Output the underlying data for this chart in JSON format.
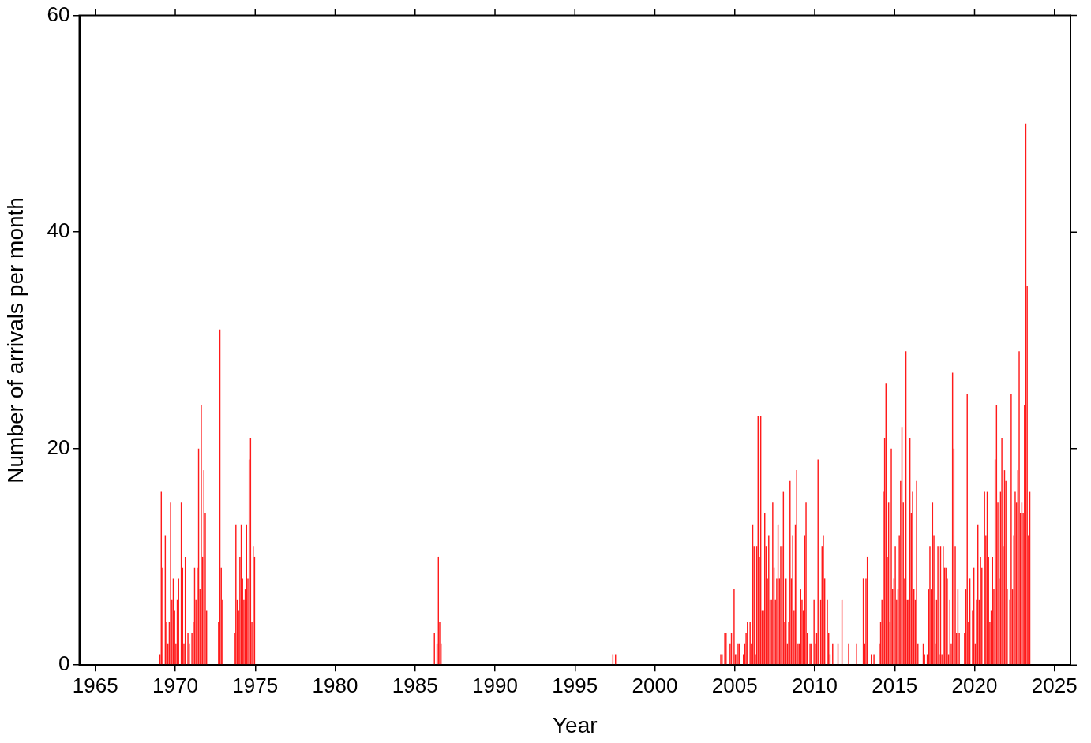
{
  "chart_data": {
    "type": "bar",
    "xlabel": "Year",
    "ylabel": "Number of arrivals per month",
    "color": "#ff1a1a",
    "x": [
      "1969-01",
      "1969-02",
      "1969-03",
      "1969-05",
      "1969-06",
      "1969-07",
      "1969-08",
      "1969-09",
      "1969-10",
      "1969-11",
      "1969-12",
      "1970-01",
      "1970-02",
      "1970-03",
      "1970-05",
      "1970-06",
      "1970-07",
      "1970-08",
      "1970-10",
      "1970-11",
      "1971-01",
      "1971-02",
      "1971-03",
      "1971-04",
      "1971-05",
      "1971-06",
      "1971-07",
      "1971-08",
      "1971-09",
      "1971-10",
      "1971-11",
      "1971-12",
      "1972-09",
      "1972-10",
      "1972-11",
      "1972-12",
      "1973-09",
      "1973-10",
      "1973-11",
      "1973-12",
      "1974-01",
      "1974-02",
      "1974-03",
      "1974-04",
      "1974-05",
      "1974-06",
      "1974-07",
      "1974-08",
      "1974-09",
      "1974-10",
      "1974-11",
      "1974-12",
      "1986-03",
      "1986-05",
      "1986-06",
      "1986-07",
      "1986-08",
      "1997-05",
      "1997-07",
      "2004-02",
      "2004-03",
      "2004-05",
      "2004-06",
      "2004-09",
      "2004-10",
      "2004-12",
      "2005-01",
      "2005-02",
      "2005-03",
      "2005-04",
      "2005-07",
      "2005-08",
      "2005-09",
      "2005-10",
      "2005-12",
      "2006-01",
      "2006-02",
      "2006-03",
      "2006-04",
      "2006-05",
      "2006-06",
      "2006-07",
      "2006-08",
      "2006-09",
      "2006-10",
      "2006-11",
      "2006-12",
      "2007-01",
      "2007-02",
      "2007-03",
      "2007-04",
      "2007-05",
      "2007-06",
      "2007-07",
      "2007-08",
      "2007-09",
      "2007-10",
      "2007-11",
      "2007-12",
      "2008-01",
      "2008-02",
      "2008-03",
      "2008-04",
      "2008-05",
      "2008-06",
      "2008-07",
      "2008-08",
      "2008-09",
      "2008-10",
      "2008-11",
      "2008-12",
      "2009-01",
      "2009-02",
      "2009-03",
      "2009-04",
      "2009-05",
      "2009-06",
      "2009-07",
      "2009-09",
      "2009-10",
      "2009-12",
      "2010-01",
      "2010-02",
      "2010-03",
      "2010-05",
      "2010-06",
      "2010-07",
      "2010-08",
      "2010-10",
      "2010-11",
      "2010-12",
      "2011-02",
      "2011-06",
      "2011-09",
      "2012-02",
      "2012-08",
      "2013-01",
      "2013-02",
      "2013-03",
      "2013-04",
      "2013-07",
      "2013-09",
      "2014-01",
      "2014-02",
      "2014-03",
      "2014-04",
      "2014-05",
      "2014-06",
      "2014-07",
      "2014-08",
      "2014-09",
      "2014-10",
      "2014-11",
      "2014-12",
      "2015-01",
      "2015-02",
      "2015-03",
      "2015-04",
      "2015-05",
      "2015-06",
      "2015-07",
      "2015-08",
      "2015-09",
      "2015-10",
      "2015-11",
      "2015-12",
      "2016-01",
      "2016-02",
      "2016-03",
      "2016-04",
      "2016-05",
      "2016-06",
      "2016-10",
      "2016-11",
      "2017-01",
      "2017-02",
      "2017-03",
      "2017-04",
      "2017-05",
      "2017-06",
      "2017-07",
      "2017-08",
      "2017-09",
      "2017-10",
      "2017-11",
      "2017-12",
      "2018-01",
      "2018-02",
      "2018-03",
      "2018-04",
      "2018-05",
      "2018-06",
      "2018-07",
      "2018-08",
      "2018-09",
      "2018-10",
      "2018-11",
      "2018-12",
      "2019-01",
      "2019-05",
      "2019-06",
      "2019-07",
      "2019-08",
      "2019-09",
      "2019-11",
      "2019-12",
      "2020-01",
      "2020-02",
      "2020-03",
      "2020-04",
      "2020-05",
      "2020-06",
      "2020-08",
      "2020-09",
      "2020-10",
      "2020-11",
      "2020-12",
      "2021-01",
      "2021-02",
      "2021-03",
      "2021-04",
      "2021-05",
      "2021-06",
      "2021-07",
      "2021-08",
      "2021-09",
      "2021-10",
      "2021-11",
      "2021-12",
      "2022-01",
      "2022-03",
      "2022-04",
      "2022-05",
      "2022-06",
      "2022-07",
      "2022-08",
      "2022-09",
      "2022-10",
      "2022-11",
      "2022-12",
      "2023-01",
      "2023-02",
      "2023-03",
      "2023-04",
      "2023-05",
      "2023-06"
    ],
    "values": [
      1,
      16,
      9,
      12,
      4,
      2,
      4,
      15,
      6,
      8,
      5,
      2,
      6,
      8,
      15,
      9,
      2,
      10,
      3,
      2,
      3,
      4,
      9,
      6,
      9,
      20,
      7,
      24,
      10,
      18,
      14,
      5,
      4,
      31,
      9,
      6,
      3,
      13,
      6,
      5,
      10,
      13,
      8,
      6,
      7,
      13,
      8,
      19,
      21,
      4,
      11,
      10,
      3,
      2,
      10,
      4,
      2,
      1,
      1,
      1,
      1,
      3,
      3,
      2,
      3,
      7,
      1,
      1,
      2,
      2,
      1,
      2,
      3,
      4,
      4,
      2,
      13,
      11,
      1,
      11,
      23,
      10,
      23,
      5,
      5,
      14,
      11,
      8,
      12,
      6,
      6,
      15,
      9,
      6,
      8,
      13,
      8,
      11,
      11,
      16,
      4,
      8,
      2,
      4,
      17,
      8,
      12,
      5,
      13,
      18,
      2,
      2,
      7,
      6,
      5,
      12,
      15,
      3,
      2,
      2,
      6,
      2,
      3,
      19,
      6,
      11,
      12,
      8,
      6,
      3,
      1,
      2,
      2,
      6,
      2,
      2,
      8,
      2,
      8,
      10,
      1,
      1,
      2,
      4,
      6,
      16,
      21,
      26,
      10,
      15,
      4,
      20,
      7,
      8,
      11,
      6,
      7,
      12,
      17,
      22,
      15,
      8,
      29,
      6,
      6,
      21,
      14,
      16,
      7,
      6,
      17,
      2,
      2,
      1,
      1,
      7,
      11,
      7,
      15,
      12,
      2,
      6,
      11,
      1,
      11,
      1,
      11,
      9,
      9,
      8,
      1,
      6,
      2,
      27,
      20,
      11,
      3,
      7,
      3,
      3,
      7,
      25,
      4,
      8,
      5,
      9,
      2,
      6,
      13,
      6,
      10,
      9,
      16,
      12,
      16,
      10,
      4,
      5,
      10,
      7,
      19,
      24,
      15,
      8,
      16,
      21,
      11,
      18,
      17,
      7,
      6,
      25,
      7,
      12,
      16,
      15,
      18,
      29,
      14,
      15,
      14,
      24,
      50,
      35,
      12,
      16
    ],
    "xlim": [
      "1964",
      "2026"
    ],
    "xticks": [
      "1965",
      "1970",
      "1975",
      "1980",
      "1985",
      "1990",
      "1995",
      "2000",
      "2005",
      "2010",
      "2015",
      "2020",
      "2025"
    ],
    "ylim": [
      0,
      60
    ],
    "yticks": [
      0,
      20,
      40,
      60
    ]
  }
}
